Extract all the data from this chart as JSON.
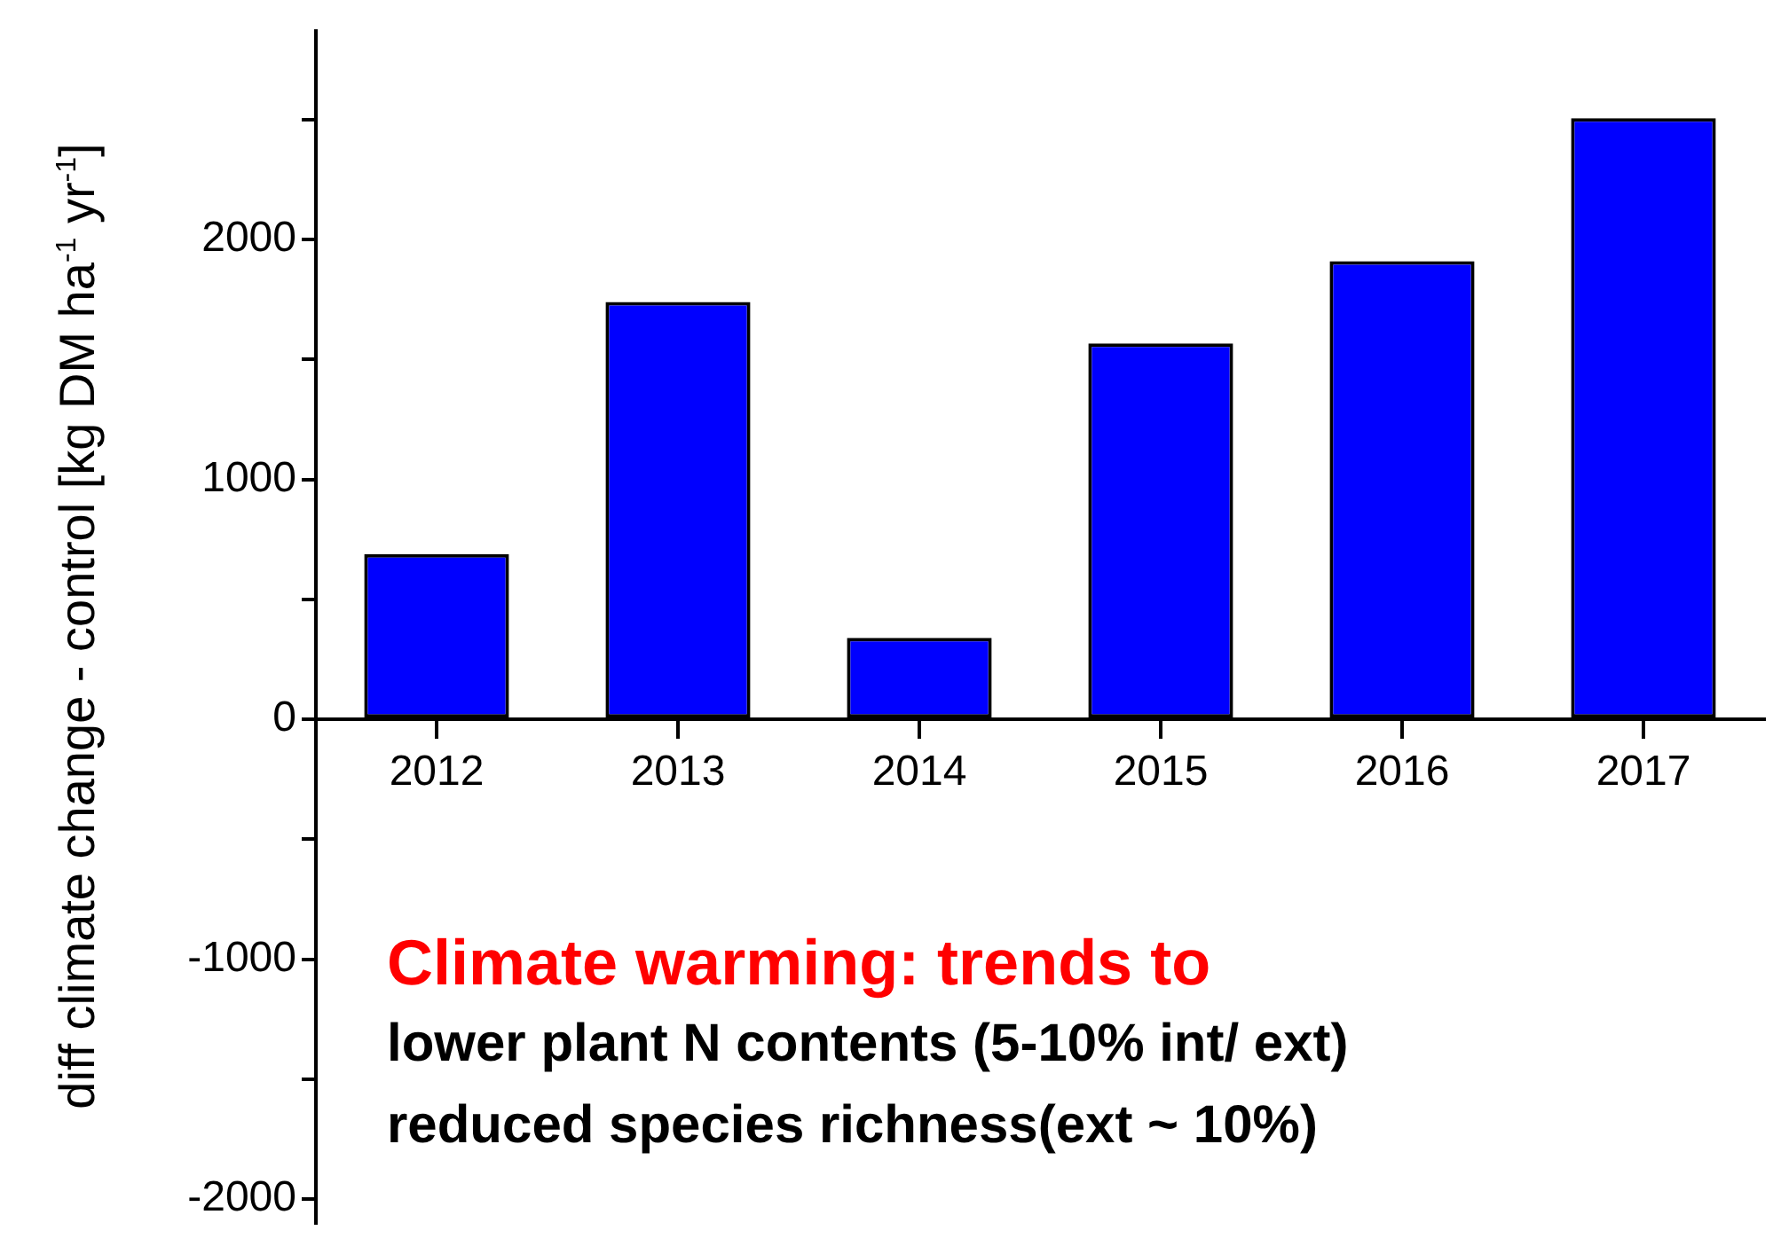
{
  "chart_data": {
    "type": "bar",
    "ylabel": "diff climate change - control [kg DM ha$^{-1}$ yr$^{-1}$]",
    "categories": [
      "2012",
      "2013",
      "2014",
      "2015",
      "2016",
      "2017"
    ],
    "values": [
      689,
      1740,
      340,
      1567,
      1910,
      2506
    ],
    "color": "#0000ff",
    "ylim": [
      -2100,
      2870
    ],
    "yticks": [
      -2000,
      {
        "value": -1500,
        "label": null
      },
      -1000,
      {
        "value": -500,
        "label": null
      },
      0,
      {
        "value": 500,
        "label": null
      },
      1000,
      {
        "value": 1500,
        "label": null
      },
      2000,
      {
        "value": 2500,
        "label": null
      }
    ],
    "grid": false,
    "legend": false,
    "annotations": [
      "Climate warming: trends to",
      "lower plant N contents (5-10% int/ ext)",
      "reduced species richness(ext ~ 10%)"
    ]
  }
}
